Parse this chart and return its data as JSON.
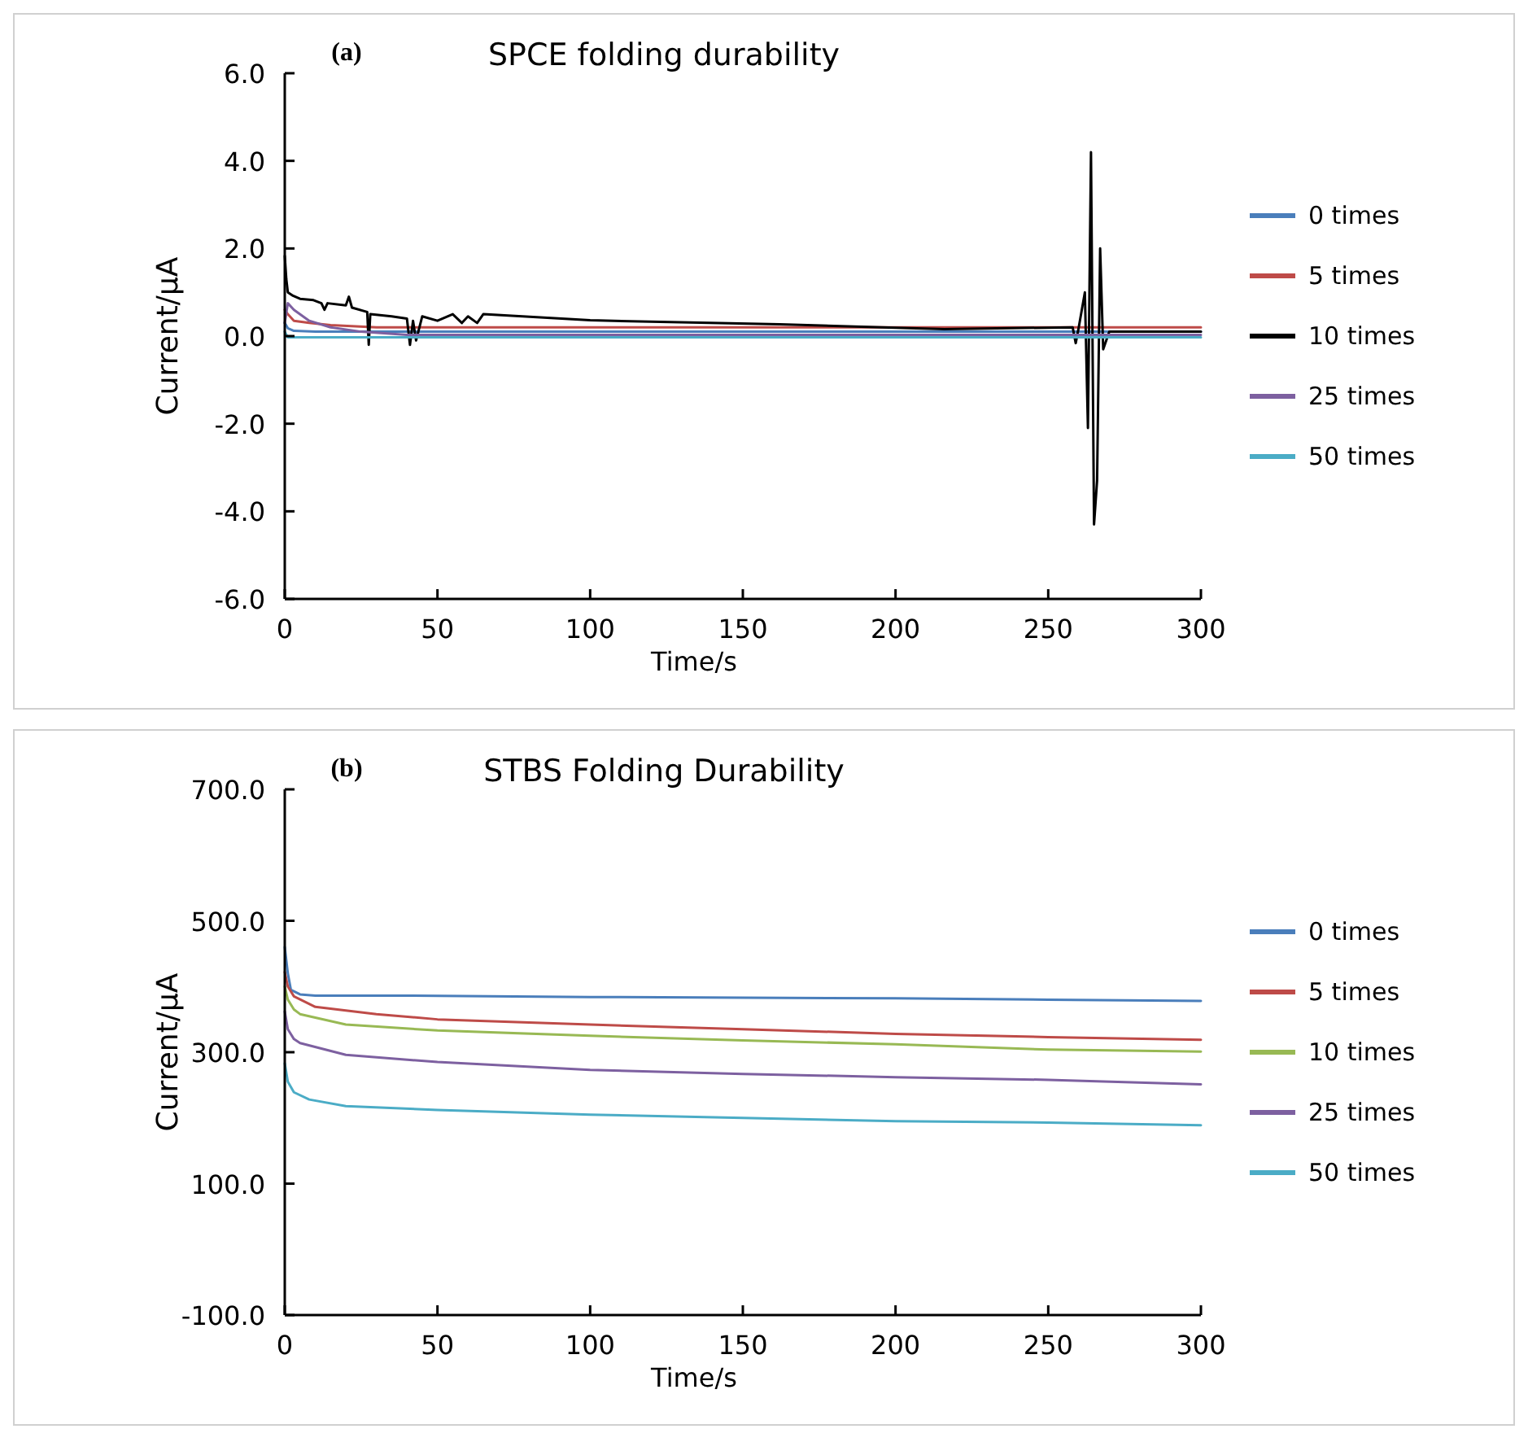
{
  "chart_data": [
    {
      "type": "line",
      "title": "SPCE folding durability",
      "xlabel": "Time/s",
      "ylabel": "Current/μA",
      "annotations": [
        "(a)"
      ],
      "xlim": [
        0,
        300
      ],
      "xticks": [
        0,
        50,
        100,
        150,
        200,
        250,
        300
      ],
      "ylim": [
        -6,
        6
      ],
      "yticks": [
        {
          "value": -6,
          "label": "-6.0"
        },
        {
          "value": -4,
          "label": "-4.0"
        },
        {
          "value": -2,
          "label": "-2.0"
        },
        {
          "value": 0,
          "label": "0.0"
        },
        {
          "value": 2,
          "label": "2.0"
        },
        {
          "value": 4,
          "label": "4.0"
        },
        {
          "value": 6,
          "label": "6.0"
        }
      ],
      "grid": false,
      "legend": "right",
      "line_style": "solid",
      "marker": "none",
      "series": [
        {
          "name": "0 times",
          "color": "#4a7ebb",
          "x": [
            0,
            1,
            3,
            10,
            50,
            100,
            150,
            200,
            250,
            300
          ],
          "values": [
            0.3,
            0.18,
            0.12,
            0.1,
            0.1,
            0.1,
            0.1,
            0.1,
            0.1,
            0.1
          ]
        },
        {
          "name": "5 times",
          "color": "#be4b48",
          "x": [
            0,
            1,
            3,
            8,
            15,
            30,
            60,
            100,
            150,
            200,
            250,
            300
          ],
          "values": [
            0.6,
            0.5,
            0.35,
            0.3,
            0.25,
            0.2,
            0.2,
            0.2,
            0.2,
            0.2,
            0.2,
            0.2
          ]
        },
        {
          "name": "10 times",
          "color": "#000000",
          "x": [
            0,
            0.5,
            1,
            2.7,
            5,
            9.4,
            12,
            13,
            14,
            20,
            21,
            22,
            27,
            27.5,
            28,
            35,
            40,
            41,
            42,
            43,
            45,
            50,
            55,
            58,
            60,
            63,
            65,
            100,
            162,
            216,
            258,
            259,
            260,
            262,
            263,
            264,
            265,
            266,
            267,
            268,
            270,
            280,
            300
          ],
          "values": [
            1.83,
            1.3,
            1.0,
            0.92,
            0.85,
            0.82,
            0.75,
            0.6,
            0.75,
            0.7,
            0.9,
            0.65,
            0.55,
            -0.2,
            0.5,
            0.45,
            0.4,
            -0.2,
            0.35,
            -0.1,
            0.45,
            0.35,
            0.5,
            0.3,
            0.45,
            0.3,
            0.5,
            0.36,
            0.27,
            0.16,
            0.2,
            -0.16,
            0.2,
            1.0,
            -2.1,
            4.2,
            -4.3,
            -3.3,
            2.0,
            -0.3,
            0.1,
            0.1,
            0.1
          ]
        },
        {
          "name": "25 times",
          "color": "#7d60a0",
          "x": [
            0,
            1,
            3,
            8,
            15,
            25,
            40,
            60,
            100,
            200,
            300
          ],
          "values": [
            0.3,
            0.75,
            0.6,
            0.35,
            0.2,
            0.1,
            0.03,
            0.03,
            0.03,
            0.03,
            0.03
          ]
        },
        {
          "name": "50 times",
          "color": "#4bacc6",
          "x": [
            0,
            1,
            5,
            50,
            100,
            150,
            200,
            250,
            300
          ],
          "values": [
            0.1,
            -0.03,
            -0.03,
            -0.03,
            -0.03,
            -0.03,
            -0.03,
            -0.03,
            -0.03
          ]
        }
      ]
    },
    {
      "type": "line",
      "title": "STBS Folding Durability",
      "xlabel": "Time/s",
      "ylabel": "Current/μA",
      "annotations": [
        "(b)"
      ],
      "xlim": [
        0,
        300
      ],
      "xticks": [
        0,
        50,
        100,
        150,
        200,
        250,
        300
      ],
      "ylim": [
        -100,
        700
      ],
      "yticks": [
        {
          "value": -100,
          "label": "-100.0"
        },
        {
          "value": 100,
          "label": "100.0"
        },
        {
          "value": 300,
          "label": "300.0"
        },
        {
          "value": 500,
          "label": "500.0"
        },
        {
          "value": 700,
          "label": "700.0"
        }
      ],
      "grid": false,
      "legend": "right",
      "line_style": "solid",
      "marker": "none",
      "series": [
        {
          "name": "0 times",
          "color": "#4a7ebb",
          "x": [
            0,
            1,
            2,
            5,
            10,
            40,
            100,
            150,
            200,
            250,
            300
          ],
          "values": [
            460,
            420,
            395,
            388,
            386,
            386,
            384,
            383,
            382,
            380,
            378
          ]
        },
        {
          "name": "5 times",
          "color": "#be4b48",
          "x": [
            0,
            1,
            3,
            10,
            30,
            50,
            100,
            150,
            200,
            250,
            300
          ],
          "values": [
            422,
            400,
            385,
            369,
            358,
            350,
            342,
            335,
            328,
            323,
            319
          ]
        },
        {
          "name": "10 times",
          "color": "#98b954",
          "x": [
            0,
            1,
            3,
            5,
            20,
            50,
            100,
            150,
            200,
            250,
            300
          ],
          "values": [
            400,
            380,
            365,
            358,
            342,
            333,
            325,
            318,
            312,
            304,
            301
          ]
        },
        {
          "name": "25 times",
          "color": "#7d60a0",
          "x": [
            0,
            1,
            3,
            5,
            20,
            50,
            100,
            150,
            200,
            250,
            300
          ],
          "values": [
            362,
            335,
            320,
            314,
            296,
            285,
            273,
            267,
            262,
            258,
            251
          ]
        },
        {
          "name": "50 times",
          "color": "#4bacc6",
          "x": [
            0,
            1,
            3,
            8,
            20,
            50,
            100,
            150,
            200,
            250,
            300
          ],
          "values": [
            283,
            255,
            239,
            228,
            218,
            212,
            205,
            200,
            195,
            193,
            189
          ]
        }
      ]
    }
  ]
}
